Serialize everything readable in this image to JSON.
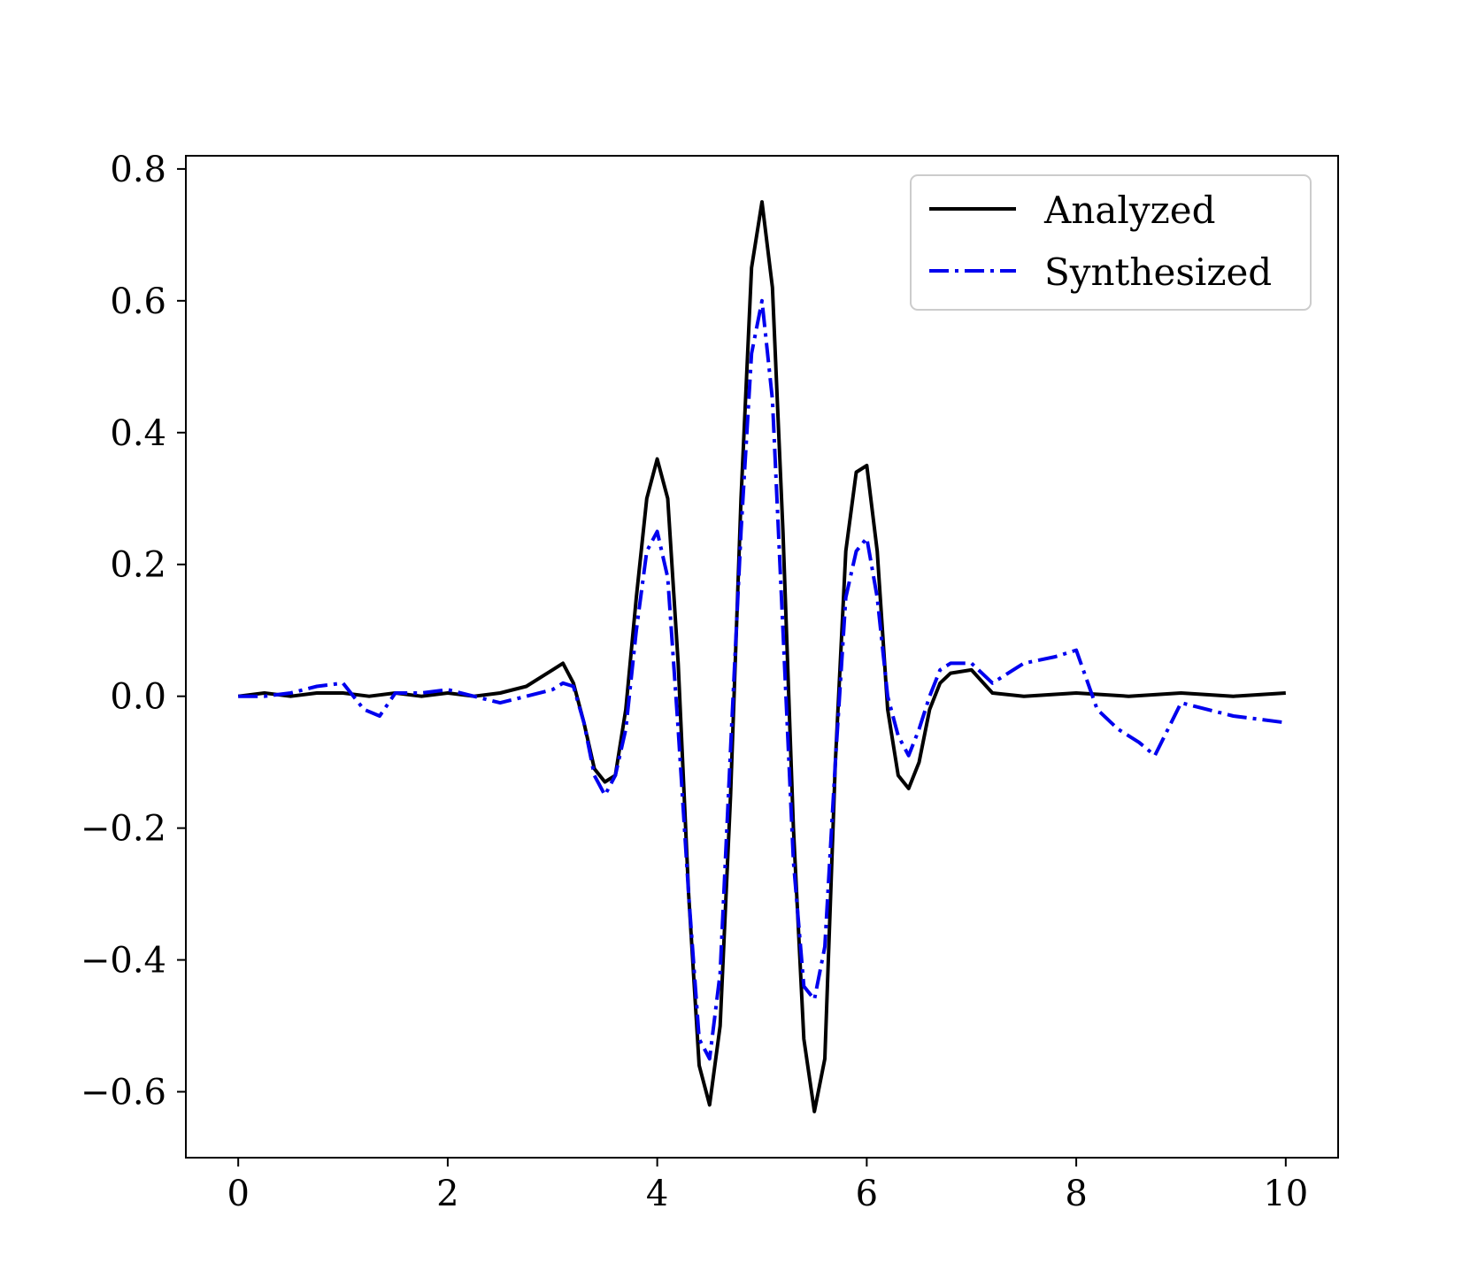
{
  "chart_data": {
    "type": "line",
    "title": "",
    "xlabel": "",
    "ylabel": "",
    "xlim": [
      -0.5,
      10.5
    ],
    "ylim": [
      -0.7,
      0.82
    ],
    "xticks": [
      0,
      2,
      4,
      6,
      8,
      10
    ],
    "xtick_labels": [
      "0",
      "2",
      "4",
      "6",
      "8",
      "10"
    ],
    "yticks": [
      -0.6,
      -0.4,
      -0.2,
      0.0,
      0.2,
      0.4,
      0.6,
      0.8
    ],
    "ytick_labels": [
      "−0.6",
      "−0.4",
      "−0.2",
      "0.0",
      "0.2",
      "0.4",
      "0.6",
      "0.8"
    ],
    "grid": false,
    "legend_position": "top-right",
    "series": [
      {
        "name": "Analyzed",
        "color": "#000000",
        "style": "solid",
        "x": [
          0.0,
          0.25,
          0.5,
          0.75,
          1.0,
          1.25,
          1.5,
          1.75,
          2.0,
          2.25,
          2.5,
          2.75,
          3.0,
          3.1,
          3.2,
          3.3,
          3.4,
          3.5,
          3.6,
          3.7,
          3.8,
          3.9,
          4.0,
          4.1,
          4.2,
          4.3,
          4.4,
          4.5,
          4.6,
          4.7,
          4.8,
          4.9,
          5.0,
          5.1,
          5.2,
          5.3,
          5.4,
          5.5,
          5.6,
          5.7,
          5.8,
          5.9,
          6.0,
          6.1,
          6.2,
          6.3,
          6.4,
          6.5,
          6.6,
          6.7,
          6.8,
          7.0,
          7.2,
          7.5,
          8.0,
          8.5,
          9.0,
          9.5,
          10.0
        ],
        "y": [
          0.0,
          0.005,
          0.0,
          0.005,
          0.005,
          0.0,
          0.005,
          0.0,
          0.005,
          0.0,
          0.005,
          0.015,
          0.04,
          0.05,
          0.02,
          -0.04,
          -0.11,
          -0.13,
          -0.12,
          -0.02,
          0.15,
          0.3,
          0.36,
          0.3,
          0.05,
          -0.3,
          -0.56,
          -0.62,
          -0.5,
          -0.15,
          0.3,
          0.65,
          0.75,
          0.62,
          0.25,
          -0.2,
          -0.52,
          -0.63,
          -0.55,
          -0.1,
          0.22,
          0.34,
          0.35,
          0.22,
          -0.02,
          -0.12,
          -0.14,
          -0.1,
          -0.02,
          0.02,
          0.035,
          0.04,
          0.005,
          0.0,
          0.005,
          0.0,
          0.005,
          0.0,
          0.005
        ]
      },
      {
        "name": "Synthesized",
        "color": "#0000ee",
        "style": "dashdot",
        "x": [
          0.0,
          0.25,
          0.5,
          0.75,
          1.0,
          1.2,
          1.35,
          1.5,
          1.75,
          2.0,
          2.25,
          2.5,
          2.75,
          3.0,
          3.1,
          3.2,
          3.3,
          3.4,
          3.5,
          3.6,
          3.7,
          3.8,
          3.9,
          4.0,
          4.1,
          4.2,
          4.3,
          4.4,
          4.5,
          4.6,
          4.7,
          4.8,
          4.9,
          5.0,
          5.1,
          5.2,
          5.3,
          5.4,
          5.5,
          5.6,
          5.7,
          5.8,
          5.9,
          6.0,
          6.1,
          6.2,
          6.3,
          6.4,
          6.5,
          6.6,
          6.7,
          6.8,
          7.0,
          7.2,
          7.5,
          7.8,
          8.0,
          8.2,
          8.4,
          8.6,
          8.75,
          9.0,
          9.5,
          10.0
        ],
        "y": [
          0.0,
          0.0,
          0.005,
          0.015,
          0.02,
          -0.02,
          -0.03,
          0.005,
          0.005,
          0.01,
          0.0,
          -0.01,
          0.0,
          0.01,
          0.02,
          0.015,
          -0.04,
          -0.12,
          -0.15,
          -0.12,
          -0.05,
          0.1,
          0.22,
          0.25,
          0.18,
          -0.05,
          -0.3,
          -0.52,
          -0.55,
          -0.42,
          -0.08,
          0.25,
          0.52,
          0.6,
          0.45,
          0.1,
          -0.25,
          -0.44,
          -0.46,
          -0.38,
          -0.1,
          0.15,
          0.22,
          0.24,
          0.15,
          0.0,
          -0.06,
          -0.09,
          -0.05,
          0.0,
          0.04,
          0.05,
          0.05,
          0.02,
          0.05,
          0.06,
          0.07,
          -0.02,
          -0.05,
          -0.07,
          -0.09,
          -0.01,
          -0.03,
          -0.04
        ]
      }
    ]
  }
}
